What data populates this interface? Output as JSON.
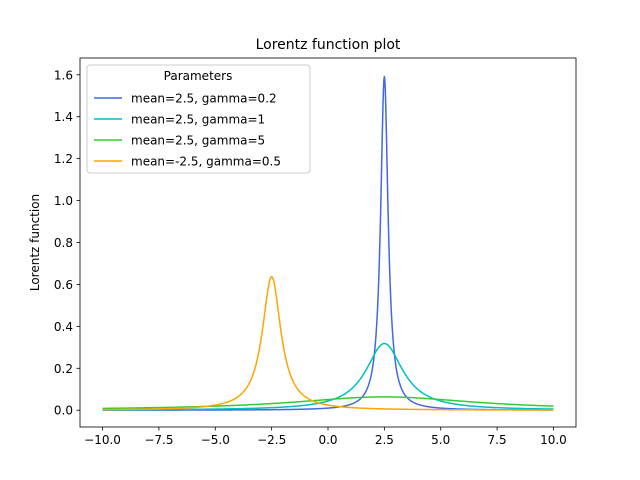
{
  "chart_data": {
    "type": "line",
    "title": "Lorentz function plot",
    "xlabel": "",
    "ylabel": "Lorentz function",
    "xlim": [
      -11.0,
      11.0
    ],
    "ylim": [
      -0.08,
      1.68
    ],
    "xticks": [
      -10.0,
      -7.5,
      -5.0,
      -2.5,
      0.0,
      2.5,
      5.0,
      7.5,
      10.0
    ],
    "xtick_labels": [
      "−10.0",
      "−7.5",
      "−5.0",
      "−2.5",
      "0.0",
      "2.5",
      "5.0",
      "7.5",
      "10.0"
    ],
    "yticks": [
      0.0,
      0.2,
      0.4,
      0.6,
      0.8,
      1.0,
      1.2,
      1.4,
      1.6
    ],
    "ytick_labels": [
      "0.0",
      "0.2",
      "0.4",
      "0.6",
      "0.8",
      "1.0",
      "1.2",
      "1.4",
      "1.6"
    ],
    "grid": false,
    "legend": {
      "title": "Parameters",
      "placement": "upper-left"
    },
    "x_range": [
      -10,
      10
    ],
    "series": [
      {
        "name": "mean=2.5, gamma=0.2",
        "mean": 2.5,
        "gamma": 0.2,
        "color": "#4169e1"
      },
      {
        "name": "mean=2.5, gamma=1",
        "mean": 2.5,
        "gamma": 1,
        "color": "#00bfbf"
      },
      {
        "name": "mean=2.5, gamma=5",
        "mean": 2.5,
        "gamma": 5,
        "color": "#32cd32"
      },
      {
        "name": "mean=-2.5, gamma=0.5",
        "mean": -2.5,
        "gamma": 0.5,
        "color": "#ffa500"
      }
    ]
  }
}
